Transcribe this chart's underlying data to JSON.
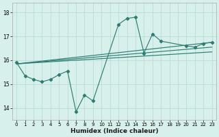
{
  "xlabel": "Humidex (Indice chaleur)",
  "bg_color": "#d8f0ec",
  "grid_color": "#b8dcd6",
  "line_color": "#2e7d72",
  "xlim": [
    -0.5,
    23.5
  ],
  "ylim": [
    13.5,
    18.4
  ],
  "xticks": [
    0,
    1,
    2,
    3,
    4,
    5,
    6,
    7,
    8,
    9,
    10,
    11,
    12,
    13,
    14,
    15,
    16,
    17,
    18,
    19,
    20,
    21,
    22,
    23
  ],
  "yticks": [
    14,
    15,
    16,
    17,
    18
  ],
  "main_series": {
    "x": [
      0,
      1,
      2,
      3,
      4,
      5,
      6,
      7,
      8,
      9,
      12,
      13,
      14,
      15,
      16,
      17,
      20,
      21,
      22,
      23
    ],
    "y": [
      15.9,
      15.35,
      15.2,
      15.1,
      15.2,
      15.4,
      15.55,
      13.85,
      14.55,
      14.3,
      17.5,
      17.75,
      17.8,
      16.3,
      17.1,
      16.8,
      16.6,
      16.55,
      16.7,
      16.75
    ]
  },
  "smooth_lines": [
    {
      "x": [
        0,
        23
      ],
      "y": [
        15.85,
        16.75
      ]
    },
    {
      "x": [
        0,
        23
      ],
      "y": [
        15.85,
        16.55
      ]
    },
    {
      "x": [
        0,
        23
      ],
      "y": [
        15.85,
        16.35
      ]
    }
  ]
}
